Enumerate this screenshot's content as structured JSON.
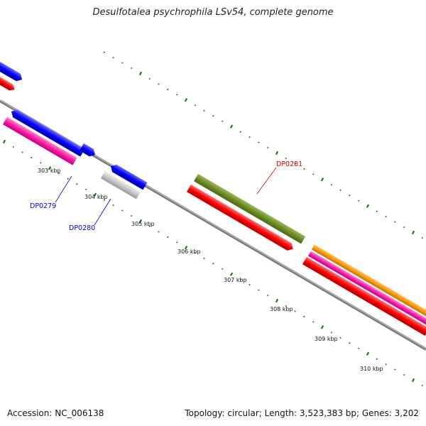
{
  "title": "Desulfotalea psychrophila LSv54, complete genome",
  "accession_text": "Accession: NC_006138",
  "topology_text": "Topology: circular; Length: 3,523,383 bp; Genes: 3,202",
  "scale_labels": [
    "303 kbp",
    "304 kbp",
    "305 kbp",
    "306 kbp",
    "307 kbp",
    "308 kbp",
    "309 kbp",
    "310 kbp"
  ],
  "gene_labels": {
    "dp0279": "DP0279",
    "dp0280": "DP0280",
    "dp0281": "DP0281"
  },
  "colors": {
    "blue": "#0000ff",
    "red": "#ff0000",
    "pink": "#ff1aa8",
    "olive": "#6b8e23",
    "gray": "#c8c8c8",
    "orange": "#ff9900",
    "backbone": "#808080",
    "tick": "#1a7f1a",
    "label_blue": "#0000cc",
    "label_red": "#cc0000"
  }
}
